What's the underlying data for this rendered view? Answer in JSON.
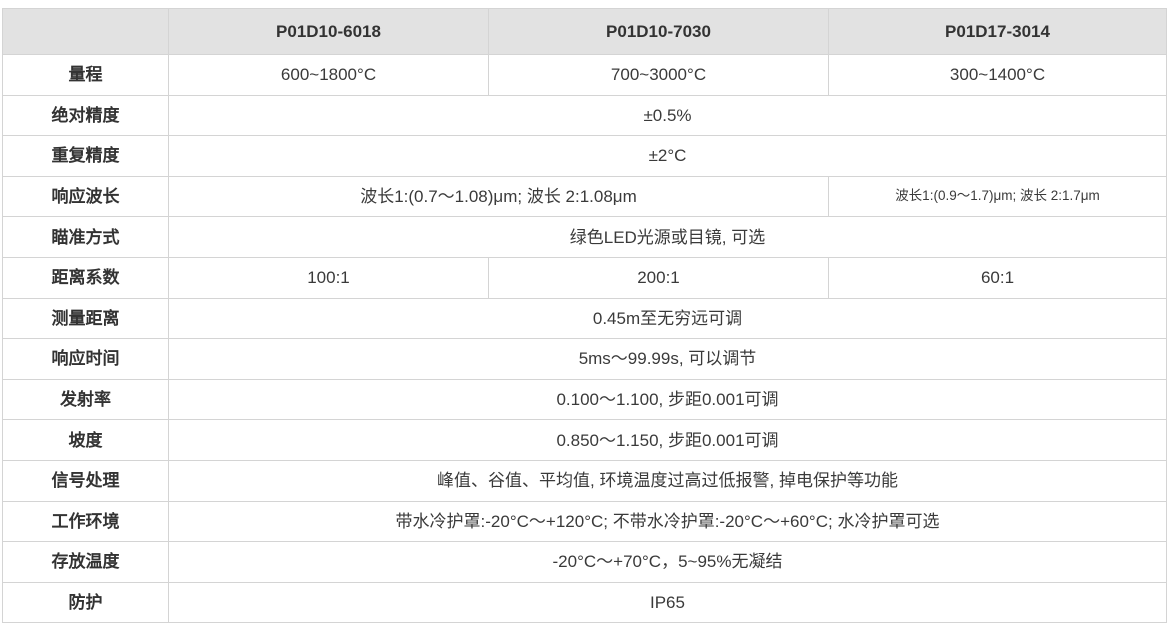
{
  "table": {
    "corner_label": "",
    "products": [
      "P01D10-6018",
      "P01D10-7030",
      "P01D17-3014"
    ],
    "rows": [
      {
        "label": "量程",
        "cells": [
          {
            "text": "600~1800°C",
            "span": 1
          },
          {
            "text": "700~3000°C",
            "span": 1
          },
          {
            "text": "300~1400°C",
            "span": 1
          }
        ]
      },
      {
        "label": "绝对精度",
        "cells": [
          {
            "text": "±0.5%",
            "span": 3
          }
        ]
      },
      {
        "label": "重复精度",
        "cells": [
          {
            "text": "±2°C",
            "span": 3
          }
        ]
      },
      {
        "label": "响应波长",
        "cells": [
          {
            "text": "波长1:(0.7～1.08)μm; 波长 2:1.08μm",
            "span": 2
          },
          {
            "text": "波长1:(0.9～1.7)μm; 波长 2:1.7μm",
            "span": 1,
            "small": true
          }
        ]
      },
      {
        "label": "瞄准方式",
        "cells": [
          {
            "text": "绿色LED光源或目镜, 可选",
            "span": 3
          }
        ]
      },
      {
        "label": "距离系数",
        "cells": [
          {
            "text": "100:1",
            "span": 1
          },
          {
            "text": "200:1",
            "span": 1
          },
          {
            "text": "60:1",
            "span": 1
          }
        ]
      },
      {
        "label": "测量距离",
        "cells": [
          {
            "text": "0.45m至无穷远可调",
            "span": 3
          }
        ]
      },
      {
        "label": "响应时间",
        "cells": [
          {
            "text": "5ms～99.99s, 可以调节",
            "span": 3
          }
        ]
      },
      {
        "label": "发射率",
        "cells": [
          {
            "text": "0.100～1.100, 步距0.001可调",
            "span": 3
          }
        ]
      },
      {
        "label": "坡度",
        "cells": [
          {
            "text": "0.850～1.150, 步距0.001可调",
            "span": 3
          }
        ]
      },
      {
        "label": "信号处理",
        "cells": [
          {
            "text": "峰值、谷值、平均值, 环境温度过高过低报警, 掉电保护等功能",
            "span": 3
          }
        ]
      },
      {
        "label": "工作环境",
        "cells": [
          {
            "text": "带水冷护罩:-20°C～+120°C; 不带水冷护罩:-20°C～+60°C; 水冷护罩可选",
            "span": 3
          }
        ]
      },
      {
        "label": "存放温度",
        "cells": [
          {
            "text": "-20°C～+70°C，5~95%无凝结",
            "span": 3
          }
        ]
      },
      {
        "label": "防护",
        "cells": [
          {
            "text": "IP65",
            "span": 3
          }
        ]
      }
    ],
    "colors": {
      "header_bg": "#e2e2e2",
      "border": "#d4d4d4",
      "text": "#333333"
    }
  }
}
